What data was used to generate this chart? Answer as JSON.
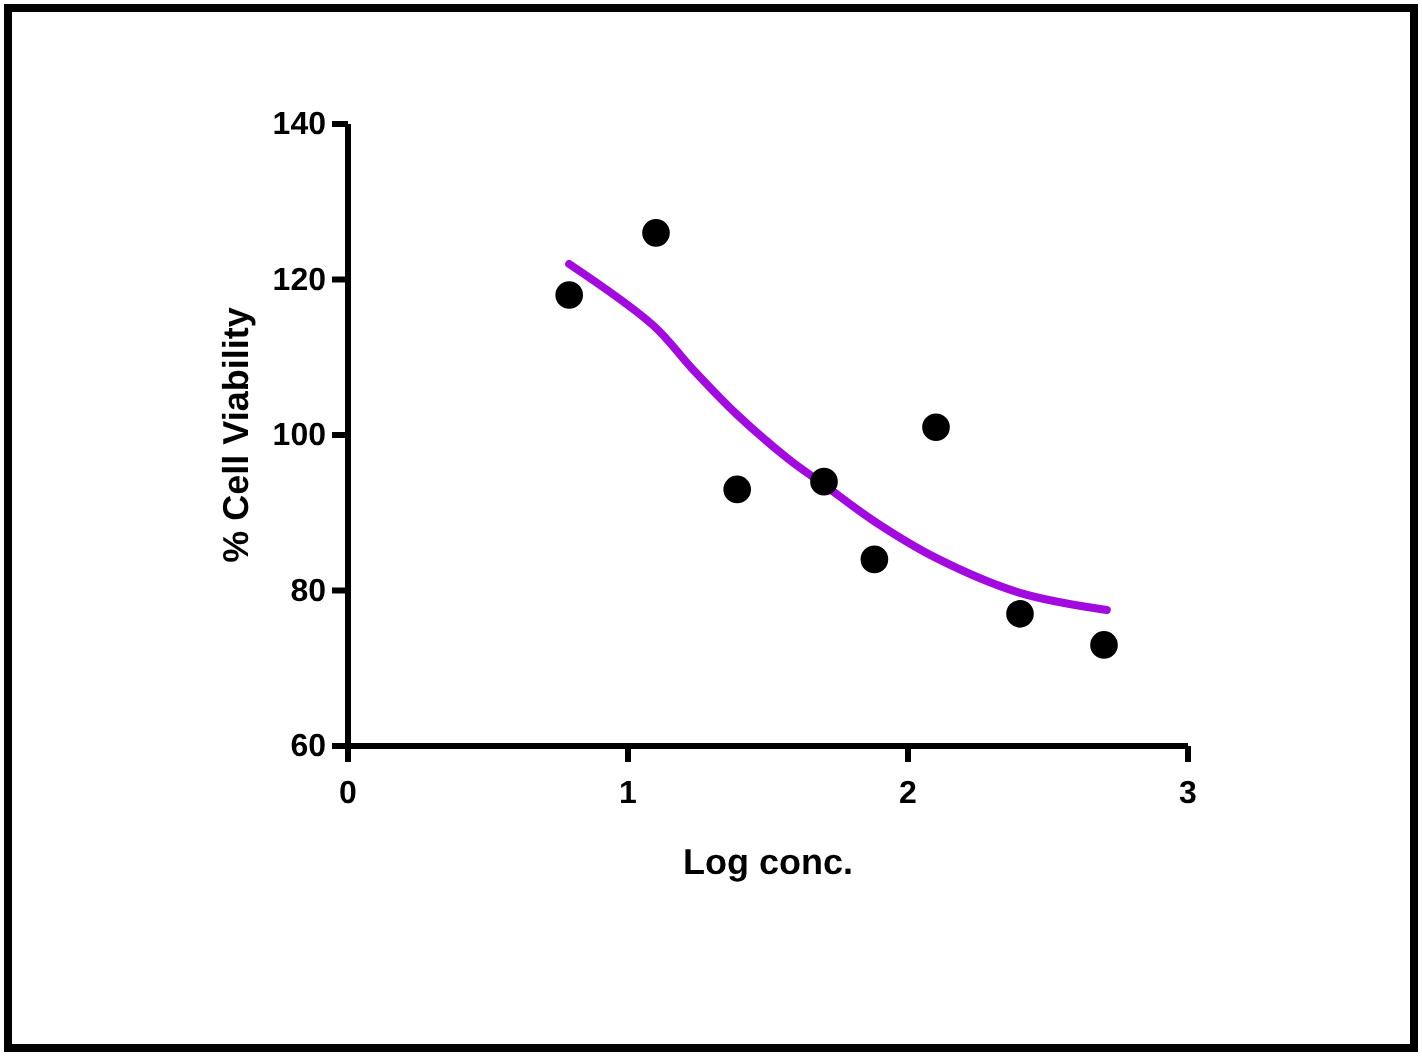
{
  "chart_data": {
    "type": "scatter",
    "xlabel": "Log conc.",
    "ylabel": "% Cell Viability",
    "xlim": [
      0,
      3
    ],
    "xticks": [
      0,
      1,
      2,
      3
    ],
    "ylim": [
      60,
      140
    ],
    "yticks": [
      60,
      80,
      100,
      120,
      140
    ],
    "marker": "circle",
    "series": [
      {
        "color": "#000000",
        "x": [
          0.79,
          1.1,
          1.39,
          1.7,
          1.88,
          2.1,
          2.4,
          2.7
        ],
        "values": [
          118,
          126,
          93,
          94,
          84,
          101,
          77,
          73
        ]
      },
      {
        "type": "line",
        "color": "#a20ae0",
        "marker": "none",
        "x": [
          0.79,
          1.09,
          1.23,
          1.39,
          1.57,
          1.7,
          1.88,
          2.1,
          2.4,
          2.71
        ],
        "values": [
          122,
          114.1,
          108.5,
          102.6,
          97.0,
          93.6,
          88.9,
          84.2,
          79.7,
          77.5
        ]
      }
    ]
  }
}
